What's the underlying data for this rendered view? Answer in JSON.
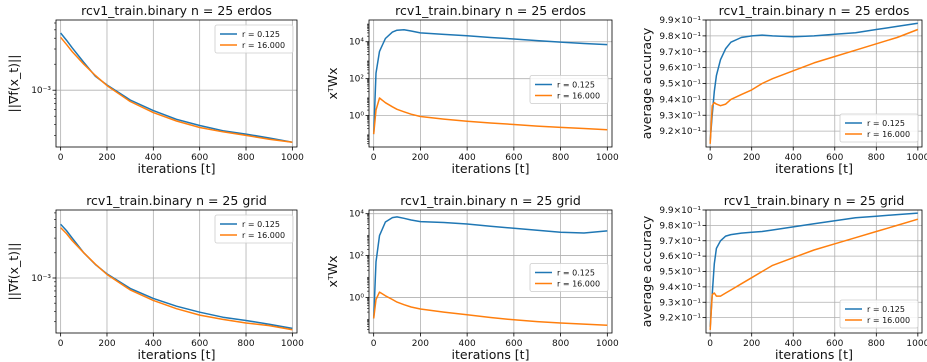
{
  "colors": {
    "series_a": "#1f77b4",
    "series_b": "#ff7f0e",
    "grid": "#b0b0b0"
  },
  "chart_data": [
    {
      "type": "line",
      "title": "rcv1_train.binary n = 25  erdos",
      "xlabel": "iterations [t]",
      "ylabel": "||∇f(x_t)||",
      "yscale": "log",
      "xlim": [
        -20,
        1020
      ],
      "ylim": [
        0.00022,
        0.0065
      ],
      "xticks": [
        0,
        200,
        400,
        600,
        800,
        1000
      ],
      "yticks": [
        {
          "v": 0.001,
          "label": "10⁻³"
        }
      ],
      "grid": true,
      "legend": "upper right",
      "x": [
        0,
        25,
        50,
        100,
        150,
        200,
        300,
        400,
        500,
        600,
        700,
        800,
        900,
        1000
      ],
      "series": [
        {
          "name": "r = 0.125",
          "values": [
            0.0046,
            0.0038,
            0.0031,
            0.0021,
            0.00145,
            0.00115,
            0.00077,
            0.00058,
            0.00046,
            0.00039,
            0.00034,
            0.00031,
            0.00028,
            0.00025
          ]
        },
        {
          "name": "r = 16.000",
          "values": [
            0.0041,
            0.0034,
            0.0028,
            0.002,
            0.00148,
            0.00113,
            0.00074,
            0.00055,
            0.00044,
            0.00037,
            0.00033,
            0.0003,
            0.00027,
            0.00025
          ]
        }
      ]
    },
    {
      "type": "line",
      "title": "rcv1_train.binary n = 25  erdos",
      "xlabel": "iterations [t]",
      "ylabel": "xᵀWx",
      "yscale": "log",
      "xlim": [
        -20,
        1020
      ],
      "ylim": [
        0.02,
        150000
      ],
      "xticks": [
        0,
        200,
        400,
        600,
        800,
        1000
      ],
      "yticks": [
        {
          "v": 1,
          "label": "10⁰"
        },
        {
          "v": 100,
          "label": "10²"
        },
        {
          "v": 10000,
          "label": "10⁴"
        }
      ],
      "grid": true,
      "legend": "center right",
      "x": [
        0,
        10,
        25,
        50,
        80,
        100,
        130,
        160,
        200,
        300,
        400,
        500,
        600,
        700,
        800,
        900,
        1000
      ],
      "series": [
        {
          "name": "r = 0.125",
          "values": [
            0.1,
            200,
            3000,
            15000,
            33000,
            42000,
            45000,
            38000,
            30000,
            25000,
            21000,
            17000,
            14000,
            11500,
            9500,
            8000,
            7000
          ]
        },
        {
          "name": "r = 16.000",
          "values": [
            0.1,
            2,
            9,
            5,
            3,
            2.2,
            1.6,
            1.2,
            0.9,
            0.65,
            0.5,
            0.4,
            0.33,
            0.27,
            0.23,
            0.2,
            0.17
          ]
        }
      ]
    },
    {
      "type": "line",
      "title": "rcv1_train.binary n = 25  erdos",
      "xlabel": "iterations [t]",
      "ylabel": "average accuracy",
      "yscale": "linear",
      "xlim": [
        -20,
        1020
      ],
      "ylim": [
        0.91,
        0.99
      ],
      "xticks": [
        0,
        200,
        400,
        600,
        800,
        1000
      ],
      "yticks": [
        {
          "v": 0.92,
          "label": "9.2×10⁻¹"
        },
        {
          "v": 0.93,
          "label": "9.3×10⁻¹"
        },
        {
          "v": 0.94,
          "label": "9.4×10⁻¹"
        },
        {
          "v": 0.95,
          "label": "9.5×10⁻¹"
        },
        {
          "v": 0.96,
          "label": "9.6×10⁻¹"
        },
        {
          "v": 0.97,
          "label": "9.7×10⁻¹"
        },
        {
          "v": 0.98,
          "label": "9.8×10⁻¹"
        },
        {
          "v": 0.99,
          "label": "9.9×10⁻¹"
        }
      ],
      "grid": true,
      "legend": "lower right",
      "x": [
        0,
        10,
        20,
        30,
        50,
        75,
        100,
        150,
        200,
        250,
        300,
        400,
        500,
        600,
        700,
        800,
        900,
        1000
      ],
      "series": [
        {
          "name": "r = 0.125",
          "values": [
            0.914,
            0.93,
            0.945,
            0.955,
            0.965,
            0.972,
            0.976,
            0.979,
            0.98,
            0.9805,
            0.98,
            0.9795,
            0.98,
            0.981,
            0.982,
            0.984,
            0.986,
            0.988
          ]
        },
        {
          "name": "r = 16.000",
          "values": [
            0.912,
            0.936,
            0.938,
            0.937,
            0.936,
            0.937,
            0.94,
            0.943,
            0.946,
            0.95,
            0.953,
            0.958,
            0.963,
            0.967,
            0.971,
            0.975,
            0.979,
            0.984
          ]
        }
      ]
    },
    {
      "type": "line",
      "title": "rcv1_train.binary n = 25  grid",
      "xlabel": "iterations [t]",
      "ylabel": "||∇f(x_t)||",
      "yscale": "log",
      "xlim": [
        -20,
        1020
      ],
      "ylim": [
        0.00022,
        0.0065
      ],
      "xticks": [
        0,
        200,
        400,
        600,
        800,
        1000
      ],
      "yticks": [
        {
          "v": 0.001,
          "label": "10⁻³"
        }
      ],
      "grid": true,
      "legend": "upper right",
      "x": [
        0,
        25,
        50,
        100,
        150,
        200,
        300,
        400,
        500,
        600,
        700,
        800,
        900,
        1000
      ],
      "series": [
        {
          "name": "r = 0.125",
          "values": [
            0.0044,
            0.0037,
            0.003,
            0.002,
            0.00145,
            0.00112,
            0.00075,
            0.00057,
            0.00046,
            0.00039,
            0.00034,
            0.00031,
            0.00028,
            0.00025
          ]
        },
        {
          "name": "r = 16.000",
          "values": [
            0.004,
            0.0034,
            0.0028,
            0.002,
            0.00146,
            0.0011,
            0.00072,
            0.00054,
            0.00043,
            0.00036,
            0.00032,
            0.00029,
            0.00027,
            0.00024
          ]
        }
      ]
    },
    {
      "type": "line",
      "title": "rcv1_train.binary n = 25  grid",
      "xlabel": "iterations [t]",
      "ylabel": "xᵀWx",
      "yscale": "log",
      "xlim": [
        -20,
        1020
      ],
      "ylim": [
        0.02,
        15000
      ],
      "xticks": [
        0,
        200,
        400,
        600,
        800,
        1000
      ],
      "yticks": [
        {
          "v": 1,
          "label": "10⁰"
        },
        {
          "v": 100,
          "label": "10²"
        },
        {
          "v": 10000,
          "label": "10⁴"
        }
      ],
      "grid": true,
      "legend": "center right",
      "x": [
        0,
        10,
        25,
        50,
        80,
        100,
        130,
        160,
        200,
        300,
        400,
        500,
        600,
        700,
        800,
        900,
        1000
      ],
      "series": [
        {
          "name": "r = 0.125",
          "values": [
            0.1,
            50,
            900,
            4000,
            6500,
            7000,
            6000,
            5000,
            4200,
            3800,
            3200,
            2500,
            2000,
            1600,
            1300,
            1200,
            1500
          ]
        },
        {
          "name": "r = 16.000",
          "values": [
            0.1,
            0.8,
            1.8,
            1.2,
            0.8,
            0.6,
            0.45,
            0.35,
            0.28,
            0.2,
            0.15,
            0.11,
            0.085,
            0.07,
            0.06,
            0.053,
            0.047
          ]
        }
      ]
    },
    {
      "type": "line",
      "title": "rcv1_train.binary n = 25  grid",
      "xlabel": "iterations [t]",
      "ylabel": "average accuracy",
      "yscale": "linear",
      "xlim": [
        -20,
        1020
      ],
      "ylim": [
        0.91,
        0.99
      ],
      "xticks": [
        0,
        200,
        400,
        600,
        800,
        1000
      ],
      "yticks": [
        {
          "v": 0.92,
          "label": "9.2×10⁻¹"
        },
        {
          "v": 0.93,
          "label": "9.3×10⁻¹"
        },
        {
          "v": 0.94,
          "label": "9.4×10⁻¹"
        },
        {
          "v": 0.95,
          "label": "9.5×10⁻¹"
        },
        {
          "v": 0.96,
          "label": "9.6×10⁻¹"
        },
        {
          "v": 0.97,
          "label": "9.7×10⁻¹"
        },
        {
          "v": 0.98,
          "label": "9.8×10⁻¹"
        },
        {
          "v": 0.99,
          "label": "9.9×10⁻¹"
        }
      ],
      "grid": true,
      "legend": "lower right",
      "x": [
        0,
        10,
        20,
        30,
        50,
        75,
        100,
        150,
        200,
        250,
        300,
        400,
        500,
        600,
        700,
        800,
        900,
        1000
      ],
      "series": [
        {
          "name": "r = 0.125",
          "values": [
            0.914,
            0.935,
            0.955,
            0.965,
            0.97,
            0.973,
            0.974,
            0.975,
            0.9755,
            0.976,
            0.977,
            0.979,
            0.981,
            0.983,
            0.985,
            0.986,
            0.987,
            0.988
          ]
        },
        {
          "name": "r = 16.000",
          "values": [
            0.912,
            0.935,
            0.936,
            0.934,
            0.934,
            0.936,
            0.938,
            0.942,
            0.946,
            0.95,
            0.954,
            0.959,
            0.964,
            0.968,
            0.972,
            0.976,
            0.98,
            0.984
          ]
        }
      ]
    }
  ]
}
